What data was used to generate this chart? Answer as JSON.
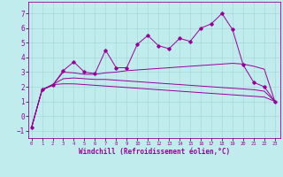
{
  "xlabel": "Windchill (Refroidissement éolien,°C)",
  "bg_color": "#c0eced",
  "line_color": "#990099",
  "grid_color": "#a8d8d8",
  "x_ticks": [
    0,
    1,
    2,
    3,
    4,
    5,
    6,
    7,
    8,
    9,
    10,
    11,
    12,
    13,
    14,
    15,
    16,
    17,
    18,
    19,
    20,
    21,
    22,
    23
  ],
  "ylim": [
    -1.5,
    7.8
  ],
  "xlim": [
    -0.3,
    23.5
  ],
  "yticks": [
    -1,
    0,
    1,
    2,
    3,
    4,
    5,
    6,
    7
  ],
  "data_jagged": [
    [
      0,
      -0.8
    ],
    [
      1,
      1.8
    ],
    [
      2,
      2.1
    ],
    [
      3,
      3.1
    ],
    [
      4,
      3.7
    ],
    [
      5,
      3.0
    ],
    [
      6,
      2.9
    ],
    [
      7,
      4.5
    ],
    [
      8,
      3.3
    ],
    [
      9,
      3.3
    ],
    [
      10,
      4.9
    ],
    [
      11,
      5.5
    ],
    [
      12,
      4.8
    ],
    [
      13,
      4.6
    ],
    [
      14,
      5.3
    ],
    [
      15,
      5.1
    ],
    [
      16,
      6.0
    ],
    [
      17,
      6.3
    ],
    [
      18,
      7.0
    ],
    [
      19,
      5.9
    ],
    [
      20,
      3.5
    ],
    [
      21,
      2.3
    ],
    [
      22,
      2.0
    ],
    [
      23,
      1.0
    ]
  ],
  "data_upper_smooth": [
    [
      0,
      -0.8
    ],
    [
      1,
      1.8
    ],
    [
      2,
      2.1
    ],
    [
      3,
      3.0
    ],
    [
      4,
      2.95
    ],
    [
      5,
      2.85
    ],
    [
      6,
      2.85
    ],
    [
      7,
      2.95
    ],
    [
      8,
      3.0
    ],
    [
      9,
      3.1
    ],
    [
      10,
      3.15
    ],
    [
      11,
      3.2
    ],
    [
      12,
      3.25
    ],
    [
      13,
      3.3
    ],
    [
      14,
      3.35
    ],
    [
      15,
      3.4
    ],
    [
      16,
      3.45
    ],
    [
      17,
      3.5
    ],
    [
      18,
      3.55
    ],
    [
      19,
      3.6
    ],
    [
      20,
      3.55
    ],
    [
      21,
      3.4
    ],
    [
      22,
      3.2
    ],
    [
      23,
      1.0
    ]
  ],
  "data_mid_smooth": [
    [
      0,
      -0.8
    ],
    [
      1,
      1.8
    ],
    [
      2,
      2.15
    ],
    [
      3,
      2.55
    ],
    [
      4,
      2.6
    ],
    [
      5,
      2.55
    ],
    [
      6,
      2.5
    ],
    [
      7,
      2.5
    ],
    [
      8,
      2.45
    ],
    [
      9,
      2.4
    ],
    [
      10,
      2.35
    ],
    [
      11,
      2.3
    ],
    [
      12,
      2.25
    ],
    [
      13,
      2.2
    ],
    [
      14,
      2.15
    ],
    [
      15,
      2.1
    ],
    [
      16,
      2.05
    ],
    [
      17,
      2.0
    ],
    [
      18,
      1.95
    ],
    [
      19,
      1.9
    ],
    [
      20,
      1.85
    ],
    [
      21,
      1.8
    ],
    [
      22,
      1.7
    ],
    [
      23,
      1.0
    ]
  ],
  "data_lower_smooth": [
    [
      0,
      -0.8
    ],
    [
      1,
      1.8
    ],
    [
      2,
      2.15
    ],
    [
      3,
      2.2
    ],
    [
      4,
      2.2
    ],
    [
      5,
      2.15
    ],
    [
      6,
      2.1
    ],
    [
      7,
      2.05
    ],
    [
      8,
      2.0
    ],
    [
      9,
      1.95
    ],
    [
      10,
      1.9
    ],
    [
      11,
      1.85
    ],
    [
      12,
      1.8
    ],
    [
      13,
      1.75
    ],
    [
      14,
      1.7
    ],
    [
      15,
      1.65
    ],
    [
      16,
      1.6
    ],
    [
      17,
      1.55
    ],
    [
      18,
      1.5
    ],
    [
      19,
      1.45
    ],
    [
      20,
      1.4
    ],
    [
      21,
      1.35
    ],
    [
      22,
      1.3
    ],
    [
      23,
      1.0
    ]
  ]
}
